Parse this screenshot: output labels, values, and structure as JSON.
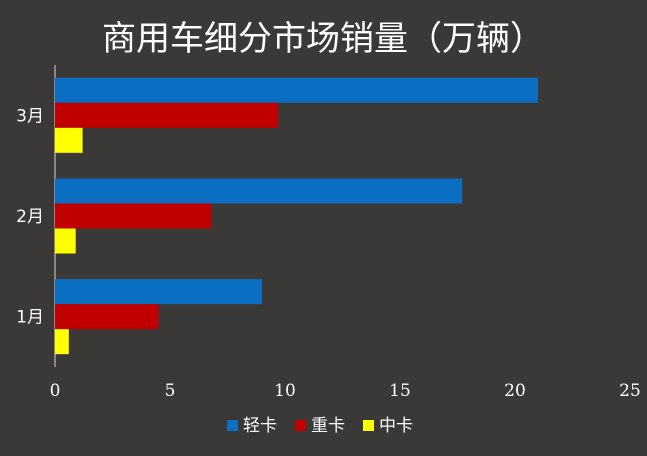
{
  "chart_data": {
    "type": "bar",
    "orientation": "horizontal",
    "title": "商用车细分市场销量（万辆）",
    "categories": [
      "1月",
      "2月",
      "3月"
    ],
    "series": [
      {
        "name": "轻卡",
        "values": [
          9.0,
          17.7,
          21.0
        ],
        "color": "#0a6fc2"
      },
      {
        "name": "重卡",
        "values": [
          4.5,
          6.8,
          9.7
        ],
        "color": "#c00000"
      },
      {
        "name": "中卡",
        "values": [
          0.6,
          0.9,
          1.2
        ],
        "color": "#ffff00"
      }
    ],
    "xlim": [
      0,
      25
    ],
    "x_ticks": [
      "0",
      "5",
      "10",
      "15",
      "20",
      "25"
    ],
    "legend_position": "bottom",
    "grid": false,
    "background_color": "#3b3938",
    "text_color": "#ffffff"
  }
}
